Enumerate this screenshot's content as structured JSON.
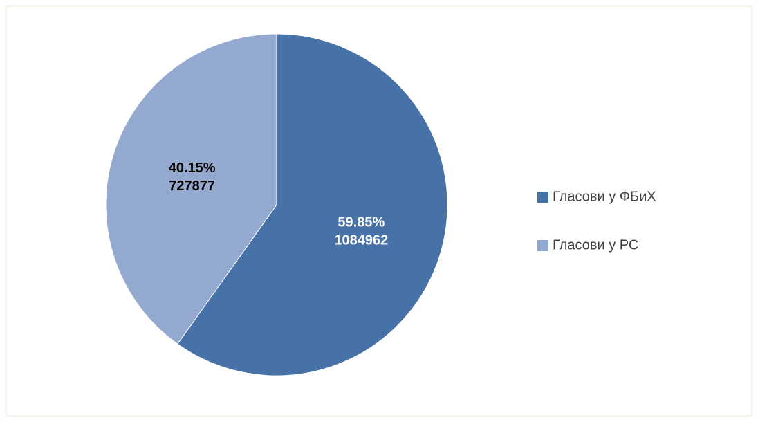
{
  "chart_data": {
    "type": "pie",
    "categories": [
      "Гласови у ФБиХ",
      "Гласови у РС"
    ],
    "values": [
      59.85,
      40.15
    ],
    "value_labels": [
      "59.85%",
      "40.15%"
    ],
    "counts": [
      1084962,
      727877
    ],
    "colors": [
      "#4672a8",
      "#94a9cf"
    ],
    "legend": "right"
  }
}
